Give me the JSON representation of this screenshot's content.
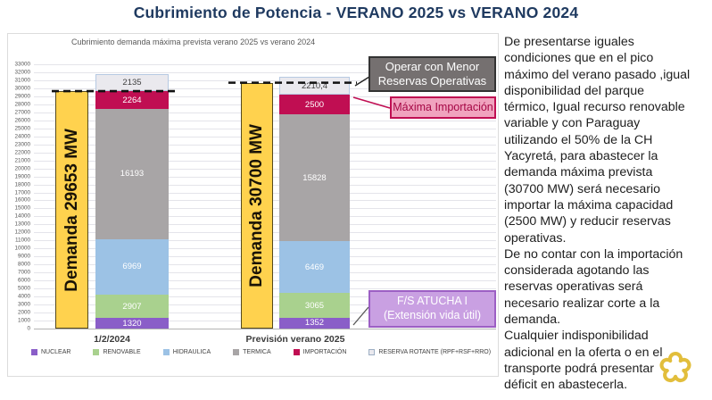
{
  "title": "Cubrimiento de Potencia  - VERANO 2025 vs VERANO 2024",
  "chart_data": {
    "type": "bar",
    "stacked": true,
    "title": "Cubrimiento demanda máxima prevista verano 2025 vs verano 2024",
    "ylim": [
      0,
      33000
    ],
    "ytick_step": 1000,
    "grid": true,
    "legend_position": "bottom",
    "categories": [
      "1/2/2024",
      "Previsión verano 2025"
    ],
    "demand_bars": [
      {
        "label": "Demanda 29653 MW",
        "value": 29653
      },
      {
        "label": "Demanda 30700 MW",
        "value": 30700
      }
    ],
    "series": [
      {
        "name": "NUCLEAR",
        "color": "#8a5ec8",
        "values": [
          1320,
          1352
        ]
      },
      {
        "name": "RENOVABLE",
        "color": "#a9d18e",
        "values": [
          2907,
          3065
        ]
      },
      {
        "name": "HIDRAULICA",
        "color": "#9cc2e5",
        "values": [
          6969,
          6469
        ]
      },
      {
        "name": "TERMICA",
        "color": "#a8a5a6",
        "values": [
          16193,
          15828
        ]
      },
      {
        "name": "IMPORTACIÓN",
        "color": "#c00e52",
        "values": [
          2264,
          2500
        ]
      },
      {
        "name": "RESERVA ROTANTE (RPF+RSF+RRO)",
        "color": "#eae9ee",
        "values": [
          2135,
          2210.4
        ],
        "light": true
      }
    ],
    "value_labels": [
      [
        "1320",
        "2907",
        "6969",
        "16193",
        "2264",
        "2135"
      ],
      [
        "1352",
        "3065",
        "6469",
        "15828",
        "2500",
        "2210,4"
      ]
    ],
    "dashed_demand_lines": [
      29653,
      30700
    ]
  },
  "callouts": {
    "reserves": "Operar con Menor\nReservas Operativas",
    "import": "Máxima Importación",
    "atucha": "F/S ATUCHA I\n(Extensión vida útil)"
  },
  "note": {
    "text": "De presentarse iguales\ncondiciones que en el pico\nmáximo del verano pasado ,igual\ndisponibilidad del parque\ntérmico, Igual recurso renovable\nvariable y con Paraguay\nutilizando el 50% de la CH\nYacyretá, para abastecer la\ndemanda máxima prevista\n(30700 MW) será necesario\nimportar la máxima capacidad\n(2500 MW) y reducir reservas\noperativas.\nDe no contar con la importación\nconsiderada agotando las\nreservas operativas será\nnecesario realizar corte a la\ndemanda.\nCualquier indisponibilidad\nadicional en la oferta o en el\ntransporte podrá presentar\ndéficit en abastecerla."
  },
  "colors": {
    "title": "#1f3a60",
    "demand_fill": "#ffd24e",
    "dashed_line": "#111111",
    "flower": "#e2be3c"
  }
}
